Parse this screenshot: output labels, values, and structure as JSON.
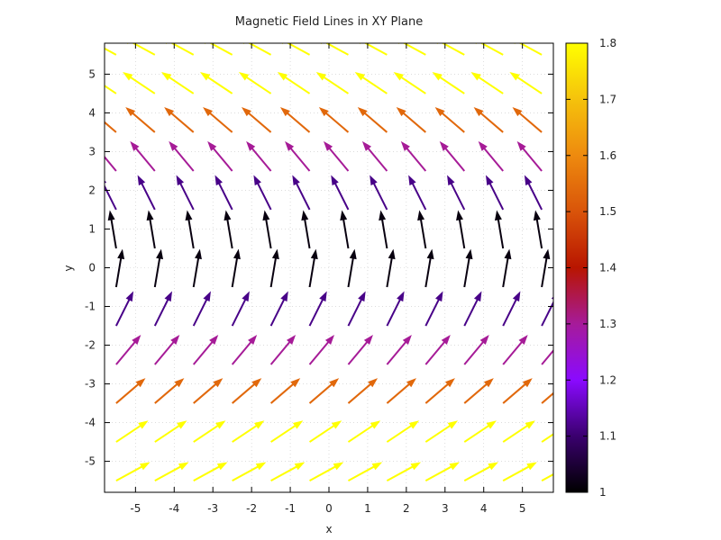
{
  "chart_data": {
    "type": "vector-field",
    "title": "Magnetic Field Lines in XY Plane",
    "xlabel": "x",
    "ylabel": "y",
    "xlim": [
      -5.8,
      5.8
    ],
    "ylim": [
      -5.8,
      5.8
    ],
    "xticks": [
      -5,
      -4,
      -3,
      -2,
      -1,
      0,
      1,
      2,
      3,
      4,
      5
    ],
    "yticks": [
      -5,
      -4,
      -3,
      -2,
      -1,
      0,
      1,
      2,
      3,
      4,
      5
    ],
    "grid": true,
    "colorbar": {
      "min": 1.0,
      "max": 1.8,
      "ticks": [
        "1",
        "1.1",
        "1.2",
        "1.3",
        "1.4",
        "1.5",
        "1.6",
        "1.7",
        "1.8"
      ],
      "palette": [
        "#000000",
        "#3a006e",
        "#8a0aff",
        "#a61b9a",
        "#b81500",
        "#d9540a",
        "#ee8a0e",
        "#f5c20c",
        "#ffff00"
      ]
    },
    "arrows": {
      "x_values": [
        -5.5,
        -4.5,
        -3.5,
        -2.5,
        -1.5,
        -0.5,
        0.5,
        1.5,
        2.5,
        3.5,
        4.5,
        5.5
      ],
      "y_values": [
        -5.5,
        -4.5,
        -3.5,
        -2.5,
        -1.5,
        -0.5,
        0.5,
        1.5,
        2.5,
        3.5,
        4.5,
        5.5
      ],
      "direction": "vx = -y/3, vy = 1 (unit arrows)",
      "magnitude": "sqrt(1 + (y/3)^2)"
    }
  }
}
